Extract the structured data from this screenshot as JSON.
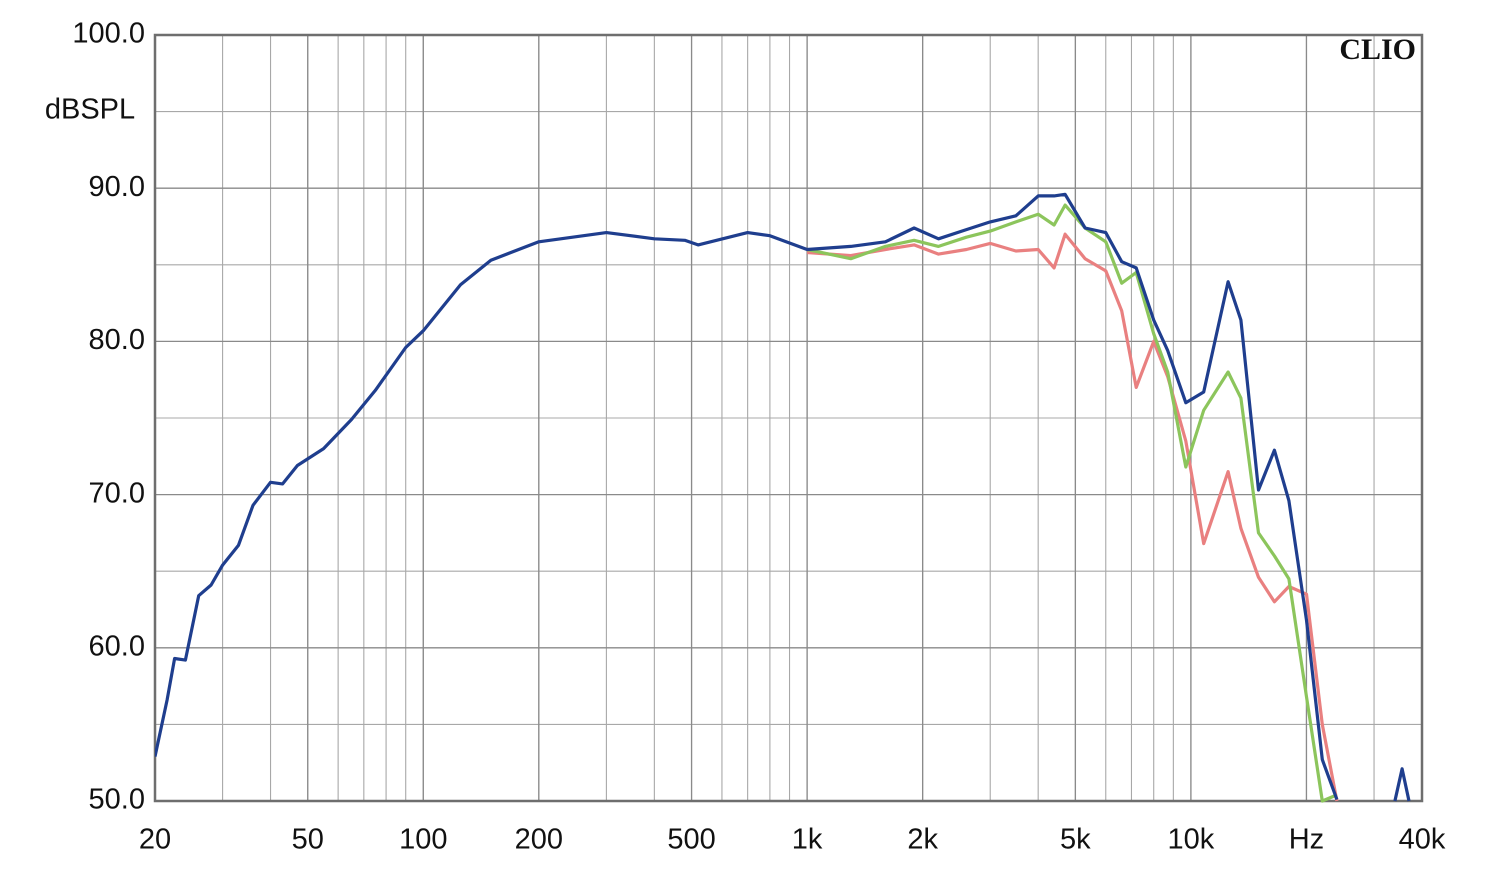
{
  "chart_data": {
    "type": "line",
    "y_label": "dBSPL",
    "watermark": "CLIO",
    "x_log": true,
    "grid": true,
    "xlim": [
      20,
      40000
    ],
    "ylim": [
      50,
      100
    ],
    "xticks": [
      20,
      50,
      100,
      200,
      500,
      {
        "value": 1000,
        "label": "1k"
      },
      {
        "value": 2000,
        "label": "2k"
      },
      {
        "value": 5000,
        "label": "5k"
      },
      {
        "value": 10000,
        "label": "10k"
      },
      {
        "value": 20000,
        "label": "Hz"
      },
      {
        "value": 40000,
        "label": "40k"
      }
    ],
    "yticks": [
      {
        "value": 50,
        "label": "50.0"
      },
      {
        "value": 60,
        "label": "60.0"
      },
      {
        "value": 70,
        "label": "70.0"
      },
      {
        "value": 80,
        "label": "80.0"
      },
      {
        "value": 90,
        "label": "90.0"
      },
      {
        "value": 100,
        "label": "100.0"
      }
    ],
    "x": [
      20,
      21.5,
      22.5,
      24,
      26,
      28,
      30,
      33,
      36,
      40,
      43,
      47,
      55,
      65,
      75,
      90,
      100,
      125,
      150,
      200,
      300,
      400,
      480,
      520,
      700,
      800,
      1000,
      1300,
      1600,
      1900,
      2200,
      2600,
      3000,
      3500,
      4000,
      4400,
      4700,
      5300,
      6000,
      6600,
      7200,
      8000,
      8700,
      9700,
      10800,
      12500,
      13500,
      15000,
      16500,
      18000,
      20000,
      22000,
      24000,
      30000,
      34000,
      35500,
      37000
    ],
    "series": [
      {
        "color": "#e98080",
        "values": [
          null,
          null,
          null,
          null,
          null,
          null,
          null,
          null,
          null,
          null,
          null,
          null,
          null,
          null,
          null,
          null,
          null,
          null,
          null,
          null,
          null,
          null,
          null,
          null,
          null,
          null,
          85.8,
          85.6,
          86.0,
          86.3,
          85.7,
          86.0,
          86.4,
          85.9,
          86.0,
          84.8,
          87.0,
          85.4,
          84.6,
          82.0,
          77.0,
          80.0,
          77.7,
          73.5,
          66.8,
          71.5,
          67.8,
          64.6,
          63.0,
          64.0,
          63.5,
          55.0,
          50.0,
          null,
          null,
          null,
          null
        ]
      },
      {
        "color": "#8cc55c",
        "values": [
          null,
          null,
          null,
          null,
          null,
          null,
          null,
          null,
          null,
          null,
          null,
          null,
          null,
          null,
          null,
          null,
          null,
          null,
          null,
          null,
          null,
          null,
          null,
          null,
          null,
          null,
          86.0,
          85.4,
          86.2,
          86.6,
          86.2,
          86.8,
          87.2,
          87.8,
          88.3,
          87.6,
          88.9,
          87.4,
          86.5,
          83.8,
          84.5,
          80.5,
          78.0,
          71.8,
          75.5,
          78.0,
          76.3,
          67.5,
          66.0,
          64.5,
          56.8,
          50.0,
          50.4,
          null,
          null,
          null,
          null
        ]
      },
      {
        "color": "#1f3e8e",
        "values": [
          52.9,
          56.6,
          59.3,
          59.2,
          63.4,
          64.1,
          65.4,
          66.7,
          69.3,
          70.8,
          70.7,
          71.9,
          73.0,
          74.9,
          76.8,
          79.6,
          80.7,
          83.7,
          85.3,
          86.5,
          87.1,
          86.7,
          86.6,
          86.3,
          87.1,
          86.9,
          86.0,
          86.2,
          86.5,
          87.4,
          86.7,
          87.3,
          87.8,
          88.2,
          89.5,
          89.5,
          89.6,
          87.4,
          87.1,
          85.2,
          84.8,
          81.4,
          79.4,
          76.0,
          76.7,
          83.9,
          81.4,
          70.3,
          72.9,
          69.6,
          61.8,
          52.7,
          50.1,
          null,
          50.0,
          52.1,
          50.0
        ]
      }
    ]
  }
}
